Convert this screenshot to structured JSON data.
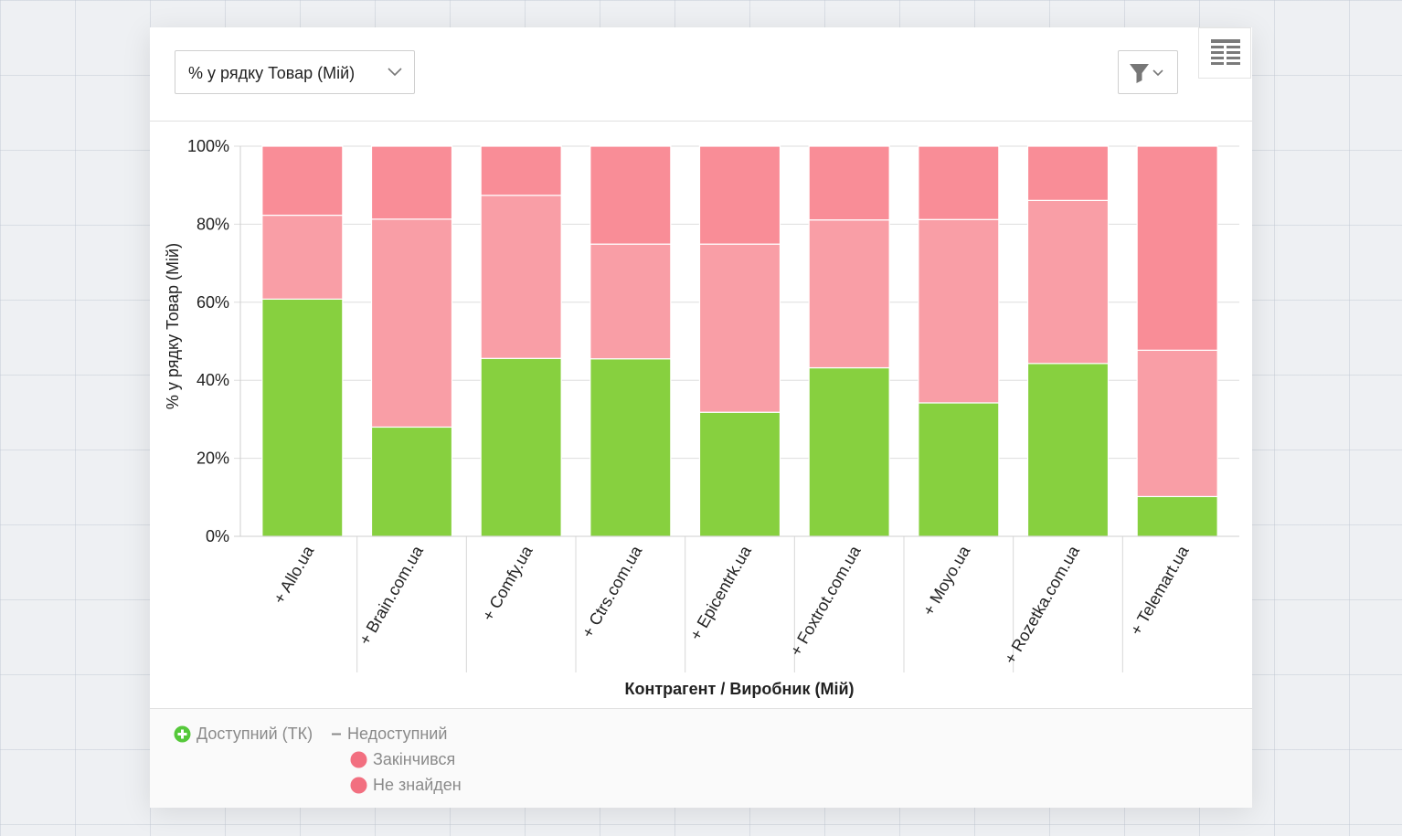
{
  "toolbar": {
    "measure_label": "% у рядку Товар (Мій)",
    "chevron_icon": "chevron-down-icon",
    "filter_icon": "filter-icon",
    "grid_icon": "table-view-icon"
  },
  "chart_data": {
    "type": "bar",
    "stacked": true,
    "xlabel": "Контрагент / Виробник (Мій)",
    "ylabel": "% у рядку Товар (Мій)",
    "ylim": [
      0,
      100
    ],
    "yticks": [
      "0%",
      "20%",
      "40%",
      "60%",
      "80%",
      "100%"
    ],
    "grid": true,
    "categories": [
      "+ Allo.ua",
      "+ Brain.com.ua",
      "+ Comfy.ua",
      "+ Ctrs.com.ua",
      "+ Epicentrk.ua",
      "+ Foxtrot.com.ua",
      "+ Moyo.ua",
      "+ Rozetka.com.ua",
      "+ Telemart.ua"
    ],
    "series": [
      {
        "name": "Доступний (ТК)",
        "color": "#87d03f",
        "values": [
          60.8,
          28.0,
          45.6,
          45.5,
          31.8,
          43.2,
          34.2,
          44.3,
          10.2
        ]
      },
      {
        "name": "Закінчився",
        "color": "#f99ea6",
        "values": [
          21.5,
          53.3,
          41.8,
          29.4,
          43.1,
          37.9,
          47.0,
          41.8,
          37.5
        ]
      },
      {
        "name": "Не знайден",
        "color": "#f98d97",
        "values": [
          17.7,
          18.7,
          12.6,
          25.1,
          25.1,
          18.9,
          18.8,
          13.9,
          52.3
        ]
      }
    ]
  },
  "legend": {
    "group_available": "Доступний (ТК)",
    "group_unavailable": "Недоступний",
    "item_finished": "Закінчився",
    "item_not_found": "Не знайден",
    "expand_icon": "plus-circle-icon",
    "collapse_icon": "minus-icon",
    "dot_color": "#f26f80",
    "expand_color": "#55c83a"
  }
}
